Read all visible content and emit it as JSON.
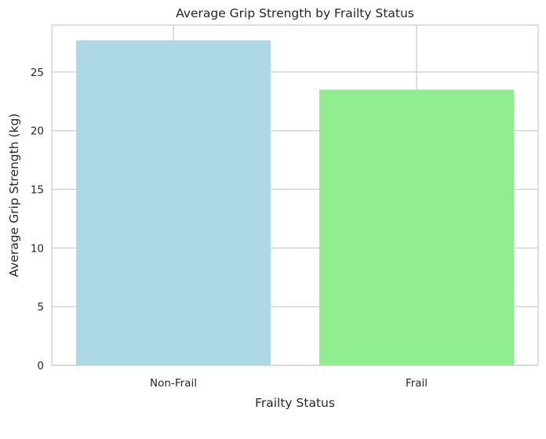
{
  "chart_data": {
    "type": "bar",
    "title": "Average Grip Strength by Frailty Status",
    "xlabel": "Frailty Status",
    "ylabel": "Average Grip Strength (kg)",
    "categories": [
      "Non-Frail",
      "Frail"
    ],
    "values": [
      27.7,
      23.5
    ],
    "colors": [
      "#add8e6",
      "#90ee90"
    ],
    "ylim": [
      0,
      29
    ],
    "yticks": [
      0,
      5,
      10,
      15,
      20,
      25
    ],
    "ytick_labels": [
      "0",
      "5",
      "10",
      "15",
      "20",
      "25"
    ],
    "grid": true,
    "legend": "none",
    "style": {
      "grid_color": "#cccccc",
      "spine_color": "#cccccc",
      "text_color": "#262626",
      "background": "#ffffff"
    }
  }
}
